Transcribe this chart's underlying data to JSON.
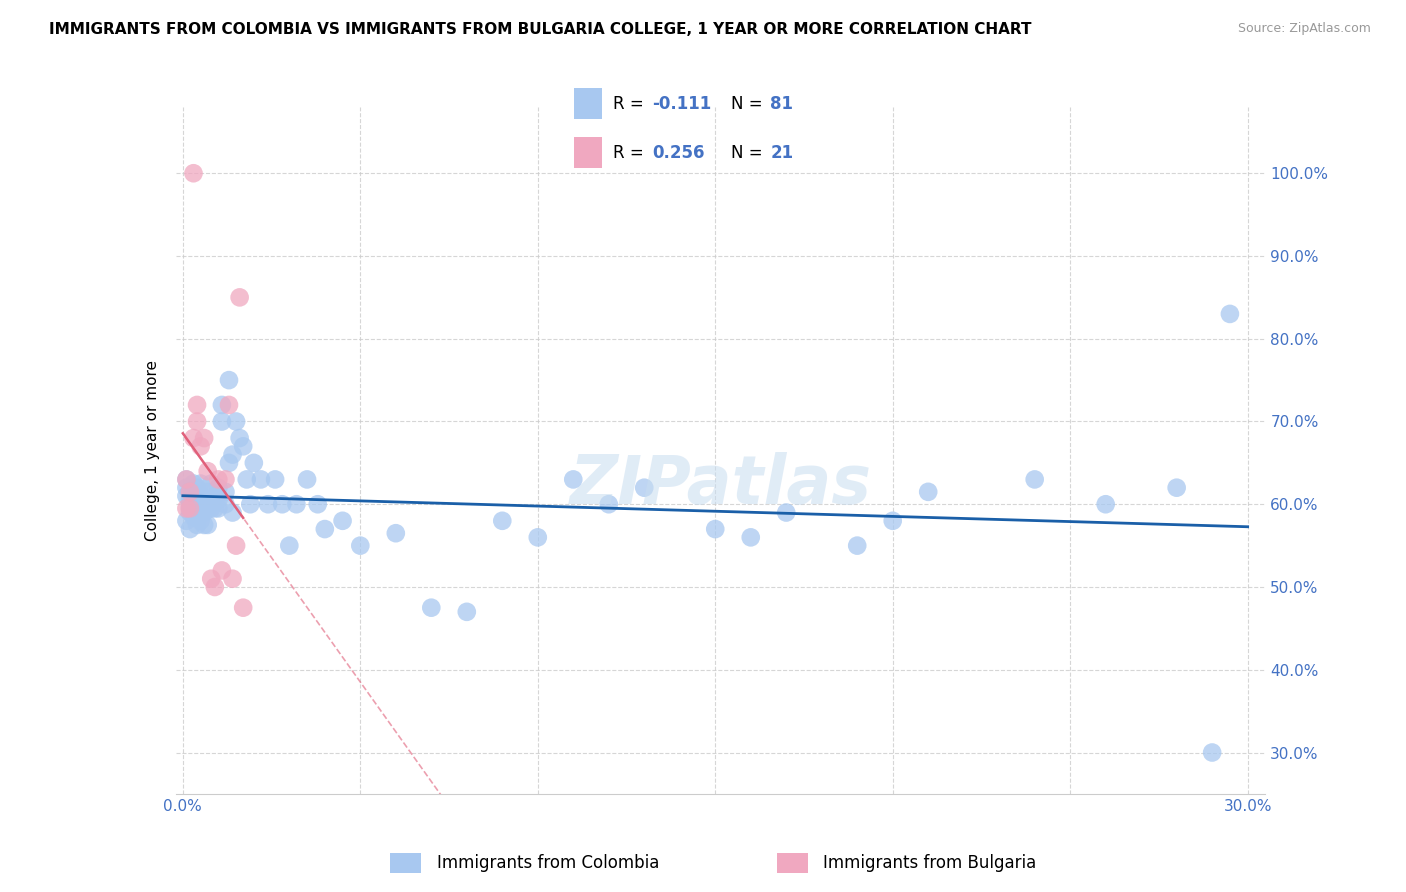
{
  "title": "IMMIGRANTS FROM COLOMBIA VS IMMIGRANTS FROM BULGARIA COLLEGE, 1 YEAR OR MORE CORRELATION CHART",
  "source": "Source: ZipAtlas.com",
  "ylabel": "College, 1 year or more",
  "xlim": [
    -0.002,
    0.305
  ],
  "ylim": [
    0.25,
    1.08
  ],
  "xticks": [
    0.0,
    0.05,
    0.1,
    0.15,
    0.2,
    0.25,
    0.3
  ],
  "xticklabels": [
    "0.0%",
    "",
    "",
    "",
    "",
    "",
    "30.0%"
  ],
  "yticks_right": [
    0.3,
    0.4,
    0.5,
    0.6,
    0.7,
    0.8,
    0.9,
    1.0
  ],
  "yticklabels_right": [
    "30.0%",
    "40.0%",
    "50.0%",
    "60.0%",
    "70.0%",
    "80.0%",
    "90.0%",
    "100.0%"
  ],
  "colombia_color": "#a8c8f0",
  "bulgaria_color": "#f0a8c0",
  "colombia_line_color": "#1a5fa8",
  "bulgaria_solid_line_color": "#e0607a",
  "bulgaria_dashed_line_color": "#e0607a",
  "colombia_R": -0.111,
  "colombia_N": 81,
  "bulgaria_R": 0.256,
  "bulgaria_N": 21,
  "watermark": "ZIPatlas",
  "legend_label_colombia": "Immigrants from Colombia",
  "legend_label_bulgaria": "Immigrants from Bulgaria",
  "colombia_x": [
    0.001,
    0.001,
    0.001,
    0.001,
    0.002,
    0.002,
    0.002,
    0.002,
    0.002,
    0.002,
    0.003,
    0.003,
    0.003,
    0.003,
    0.003,
    0.004,
    0.004,
    0.004,
    0.004,
    0.005,
    0.005,
    0.005,
    0.005,
    0.006,
    0.006,
    0.006,
    0.007,
    0.007,
    0.007,
    0.008,
    0.008,
    0.008,
    0.009,
    0.009,
    0.01,
    0.01,
    0.01,
    0.011,
    0.011,
    0.012,
    0.012,
    0.013,
    0.013,
    0.014,
    0.014,
    0.015,
    0.016,
    0.017,
    0.018,
    0.019,
    0.02,
    0.022,
    0.024,
    0.026,
    0.028,
    0.03,
    0.032,
    0.035,
    0.038,
    0.04,
    0.045,
    0.05,
    0.06,
    0.07,
    0.08,
    0.09,
    0.1,
    0.11,
    0.12,
    0.13,
    0.15,
    0.16,
    0.17,
    0.19,
    0.2,
    0.21,
    0.24,
    0.26,
    0.28,
    0.29,
    0.295
  ],
  "colombia_y": [
    0.62,
    0.63,
    0.61,
    0.58,
    0.6,
    0.59,
    0.615,
    0.605,
    0.595,
    0.57,
    0.625,
    0.605,
    0.595,
    0.615,
    0.585,
    0.6,
    0.595,
    0.62,
    0.575,
    0.61,
    0.625,
    0.595,
    0.58,
    0.575,
    0.605,
    0.59,
    0.595,
    0.615,
    0.575,
    0.6,
    0.595,
    0.625,
    0.61,
    0.595,
    0.62,
    0.605,
    0.595,
    0.72,
    0.7,
    0.615,
    0.6,
    0.75,
    0.65,
    0.66,
    0.59,
    0.7,
    0.68,
    0.67,
    0.63,
    0.6,
    0.65,
    0.63,
    0.6,
    0.63,
    0.6,
    0.55,
    0.6,
    0.63,
    0.6,
    0.57,
    0.58,
    0.55,
    0.565,
    0.475,
    0.47,
    0.58,
    0.56,
    0.63,
    0.6,
    0.62,
    0.57,
    0.56,
    0.59,
    0.55,
    0.58,
    0.615,
    0.63,
    0.6,
    0.62,
    0.3,
    0.83
  ],
  "bulgaria_x": [
    0.001,
    0.001,
    0.002,
    0.002,
    0.003,
    0.004,
    0.004,
    0.005,
    0.006,
    0.007,
    0.008,
    0.009,
    0.01,
    0.011,
    0.012,
    0.013,
    0.014,
    0.015,
    0.016,
    0.017,
    0.003
  ],
  "bulgaria_y": [
    0.63,
    0.595,
    0.615,
    0.595,
    0.68,
    0.72,
    0.7,
    0.67,
    0.68,
    0.64,
    0.51,
    0.5,
    0.63,
    0.52,
    0.63,
    0.72,
    0.51,
    0.55,
    0.85,
    0.475,
    1.0
  ]
}
